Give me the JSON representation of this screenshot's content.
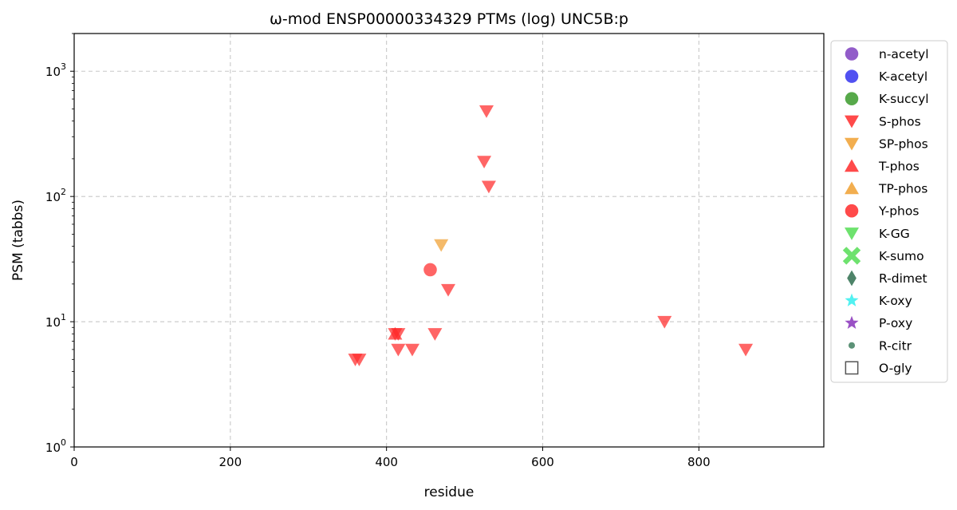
{
  "chart_data": {
    "type": "scatter",
    "title": "ω-mod ENSP00000334329 PTMs (log) UNC5B:p",
    "xlabel": "residue",
    "ylabel": "PSM (tabbs)",
    "xlim": [
      0,
      960
    ],
    "ylim": [
      1,
      2000
    ],
    "yscale": "log",
    "x_ticks": [
      0,
      200,
      400,
      600,
      800
    ],
    "y_ticks": [
      1,
      10,
      100,
      1000
    ],
    "y_tick_labels": [
      {
        "base": "10",
        "exp": "0"
      },
      {
        "base": "10",
        "exp": "1"
      },
      {
        "base": "10",
        "exp": "2"
      },
      {
        "base": "10",
        "exp": "3"
      }
    ],
    "grid": true,
    "legend_position": "outside-right",
    "legend": [
      {
        "name": "n-acetyl",
        "marker": "circle",
        "color": "#7f3fbf"
      },
      {
        "name": "K-acetyl",
        "marker": "circle",
        "color": "#3333ee"
      },
      {
        "name": "K-succyl",
        "marker": "circle",
        "color": "#3a9a2a"
      },
      {
        "name": "S-phos",
        "marker": "triangle-down",
        "color": "#ff2a2a"
      },
      {
        "name": "SP-phos",
        "marker": "triangle-down",
        "color": "#f0a030"
      },
      {
        "name": "T-phos",
        "marker": "triangle-up",
        "color": "#ff2a2a"
      },
      {
        "name": "TP-phos",
        "marker": "triangle-up",
        "color": "#f0a030"
      },
      {
        "name": "Y-phos",
        "marker": "circle",
        "color": "#ff2a2a"
      },
      {
        "name": "K-GG",
        "marker": "triangle-down",
        "color": "#55dd55"
      },
      {
        "name": "K-sumo",
        "marker": "x",
        "color": "#55dd55"
      },
      {
        "name": "R-dimet",
        "marker": "diamond",
        "color": "#2f6f4f"
      },
      {
        "name": "K-oxy",
        "marker": "star",
        "color": "#33eeee"
      },
      {
        "name": "P-oxy",
        "marker": "star",
        "color": "#8833bb"
      },
      {
        "name": "R-citr",
        "marker": "small-circle",
        "color": "#3f7f5f"
      },
      {
        "name": "O-gly",
        "marker": "square-open",
        "color": "#555555"
      }
    ],
    "series": [
      {
        "name": "S-phos",
        "marker": "triangle-down",
        "color": "#ff2a2a",
        "points": [
          [
            360,
            5
          ],
          [
            365,
            5
          ],
          [
            411,
            8
          ],
          [
            415,
            8
          ],
          [
            415,
            6
          ],
          [
            433,
            6
          ],
          [
            462,
            8
          ],
          [
            479,
            18
          ],
          [
            525,
            190
          ],
          [
            528,
            480
          ],
          [
            531,
            120
          ],
          [
            756,
            10
          ],
          [
            860,
            6
          ]
        ]
      },
      {
        "name": "T-phos",
        "marker": "triangle-up",
        "color": "#ff2a2a",
        "points": [
          [
            411,
            8
          ]
        ]
      },
      {
        "name": "SP-phos",
        "marker": "triangle-down",
        "color": "#f0a030",
        "points": [
          [
            470,
            41
          ]
        ]
      },
      {
        "name": "Y-phos",
        "marker": "circle",
        "color": "#ff2a2a",
        "points": [
          [
            456,
            26
          ]
        ]
      }
    ]
  }
}
